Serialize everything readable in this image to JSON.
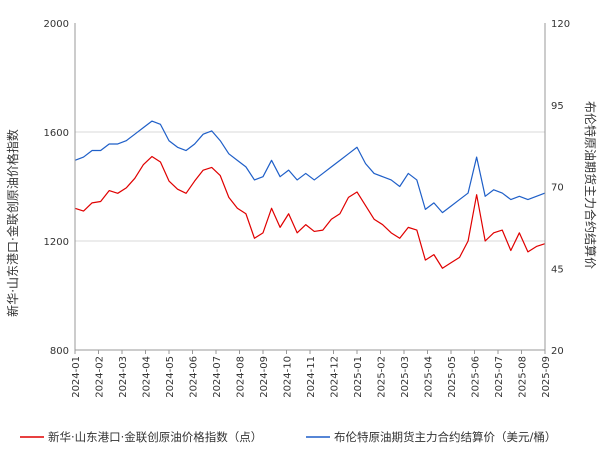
{
  "chart_data": {
    "type": "line",
    "title": "",
    "x_tick_labels": [
      "2024-01",
      "2024-02",
      "2024-03",
      "2024-04",
      "2024-05",
      "2024-06",
      "2024-07",
      "2024-08",
      "2024-09",
      "2024-10",
      "2024-11",
      "2024-12",
      "2025-01",
      "2025-02",
      "2025-03",
      "2025-04",
      "2025-05",
      "2025-06",
      "2025-07",
      "2025-08",
      "2025-09"
    ],
    "y_left": {
      "label": "新华·山东港口·金联创原油价格指数",
      "ticks": [
        800,
        1200,
        1600,
        2000
      ],
      "ylim": [
        800,
        2000
      ]
    },
    "y_right": {
      "label": "布伦特原油期货主力合约结算价",
      "ticks": [
        20,
        45,
        70,
        95,
        120
      ],
      "ylim": [
        20,
        120
      ]
    },
    "grid": "horizontal",
    "legend_position": "bottom",
    "series": [
      {
        "name": "新华·山东港口·金联创原油价格指数（点）",
        "axis": "left",
        "color": "#e00000",
        "values": [
          1320,
          1310,
          1340,
          1345,
          1385,
          1375,
          1395,
          1430,
          1480,
          1510,
          1490,
          1420,
          1390,
          1375,
          1420,
          1460,
          1470,
          1440,
          1360,
          1320,
          1300,
          1210,
          1230,
          1320,
          1250,
          1300,
          1230,
          1260,
          1235,
          1240,
          1280,
          1300,
          1360,
          1380,
          1330,
          1280,
          1260,
          1230,
          1210,
          1250,
          1240,
          1130,
          1150,
          1100,
          1120,
          1140,
          1200,
          1370,
          1200,
          1230,
          1240,
          1165,
          1230,
          1160,
          1180,
          1190
        ]
      },
      {
        "name": "布伦特原油期货主力合约结算价（美元/桶）",
        "axis": "right",
        "color": "#1f5fc8",
        "values": [
          78,
          79,
          81,
          81,
          83,
          83,
          84,
          86,
          88,
          90,
          89,
          84,
          82,
          81,
          83,
          86,
          87,
          84,
          80,
          78,
          76,
          72,
          73,
          78,
          73,
          75,
          72,
          74,
          72,
          74,
          76,
          78,
          80,
          82,
          77,
          74,
          73,
          72,
          70,
          74,
          72,
          63,
          65,
          62,
          64,
          66,
          68,
          79,
          67,
          69,
          68,
          66,
          67,
          66,
          67,
          68
        ]
      }
    ]
  }
}
